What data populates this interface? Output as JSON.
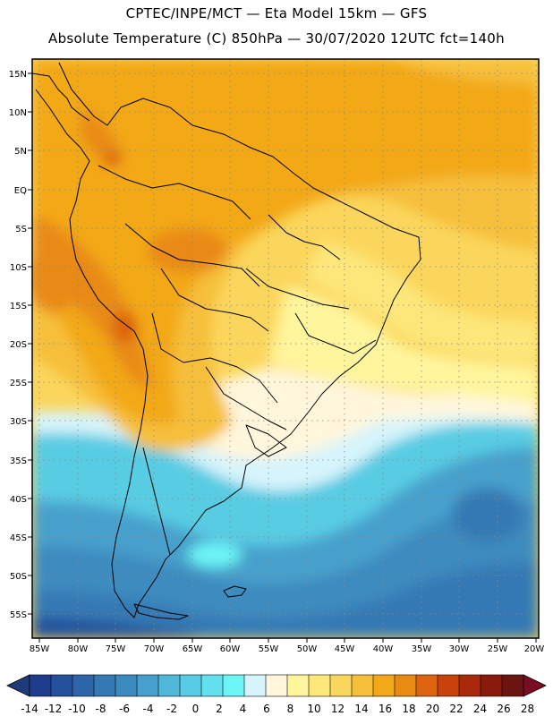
{
  "header": {
    "line1": "CPTEC/INPE/MCT —  Eta Model 15km — GFS",
    "line2": "Absolute Temperature (C) 850hPa — 30/07/2020 12UTC fct=140h"
  },
  "map": {
    "lat_labels": [
      "15N",
      "10N",
      "5N",
      "EQ",
      "5S",
      "10S",
      "15S",
      "20S",
      "25S",
      "30S",
      "35S",
      "40S",
      "45S",
      "50S",
      "55S"
    ],
    "lon_labels": [
      "85W",
      "80W",
      "75W",
      "70W",
      "65W",
      "60W",
      "55W",
      "50W",
      "45W",
      "40W",
      "35W",
      "30W",
      "25W",
      "20W"
    ]
  },
  "colorbar": {
    "labels": [
      "-14",
      "-12",
      "-10",
      "-8",
      "-6",
      "-4",
      "-2",
      "0",
      "2",
      "4",
      "6",
      "8",
      "10",
      "12",
      "14",
      "16",
      "18",
      "20",
      "22",
      "24",
      "26",
      "28"
    ],
    "colors": [
      "#1d3c8c",
      "#24519c",
      "#2c66a8",
      "#3479b4",
      "#3c8bbf",
      "#47a0cc",
      "#4fb8da",
      "#58cce3",
      "#62e0ee",
      "#6cf5f6",
      "#d6f4fb",
      "#fff6dc",
      "#fff59c",
      "#fde77a",
      "#fbd65c",
      "#f6bf3b",
      "#f3a818",
      "#e98a12",
      "#dd630e",
      "#c9420c",
      "#a92a0b",
      "#8a1a0d",
      "#6b1412"
    ],
    "low_arrow_color": "#1e3a7a",
    "high_arrow_color": "#7a0d24"
  }
}
